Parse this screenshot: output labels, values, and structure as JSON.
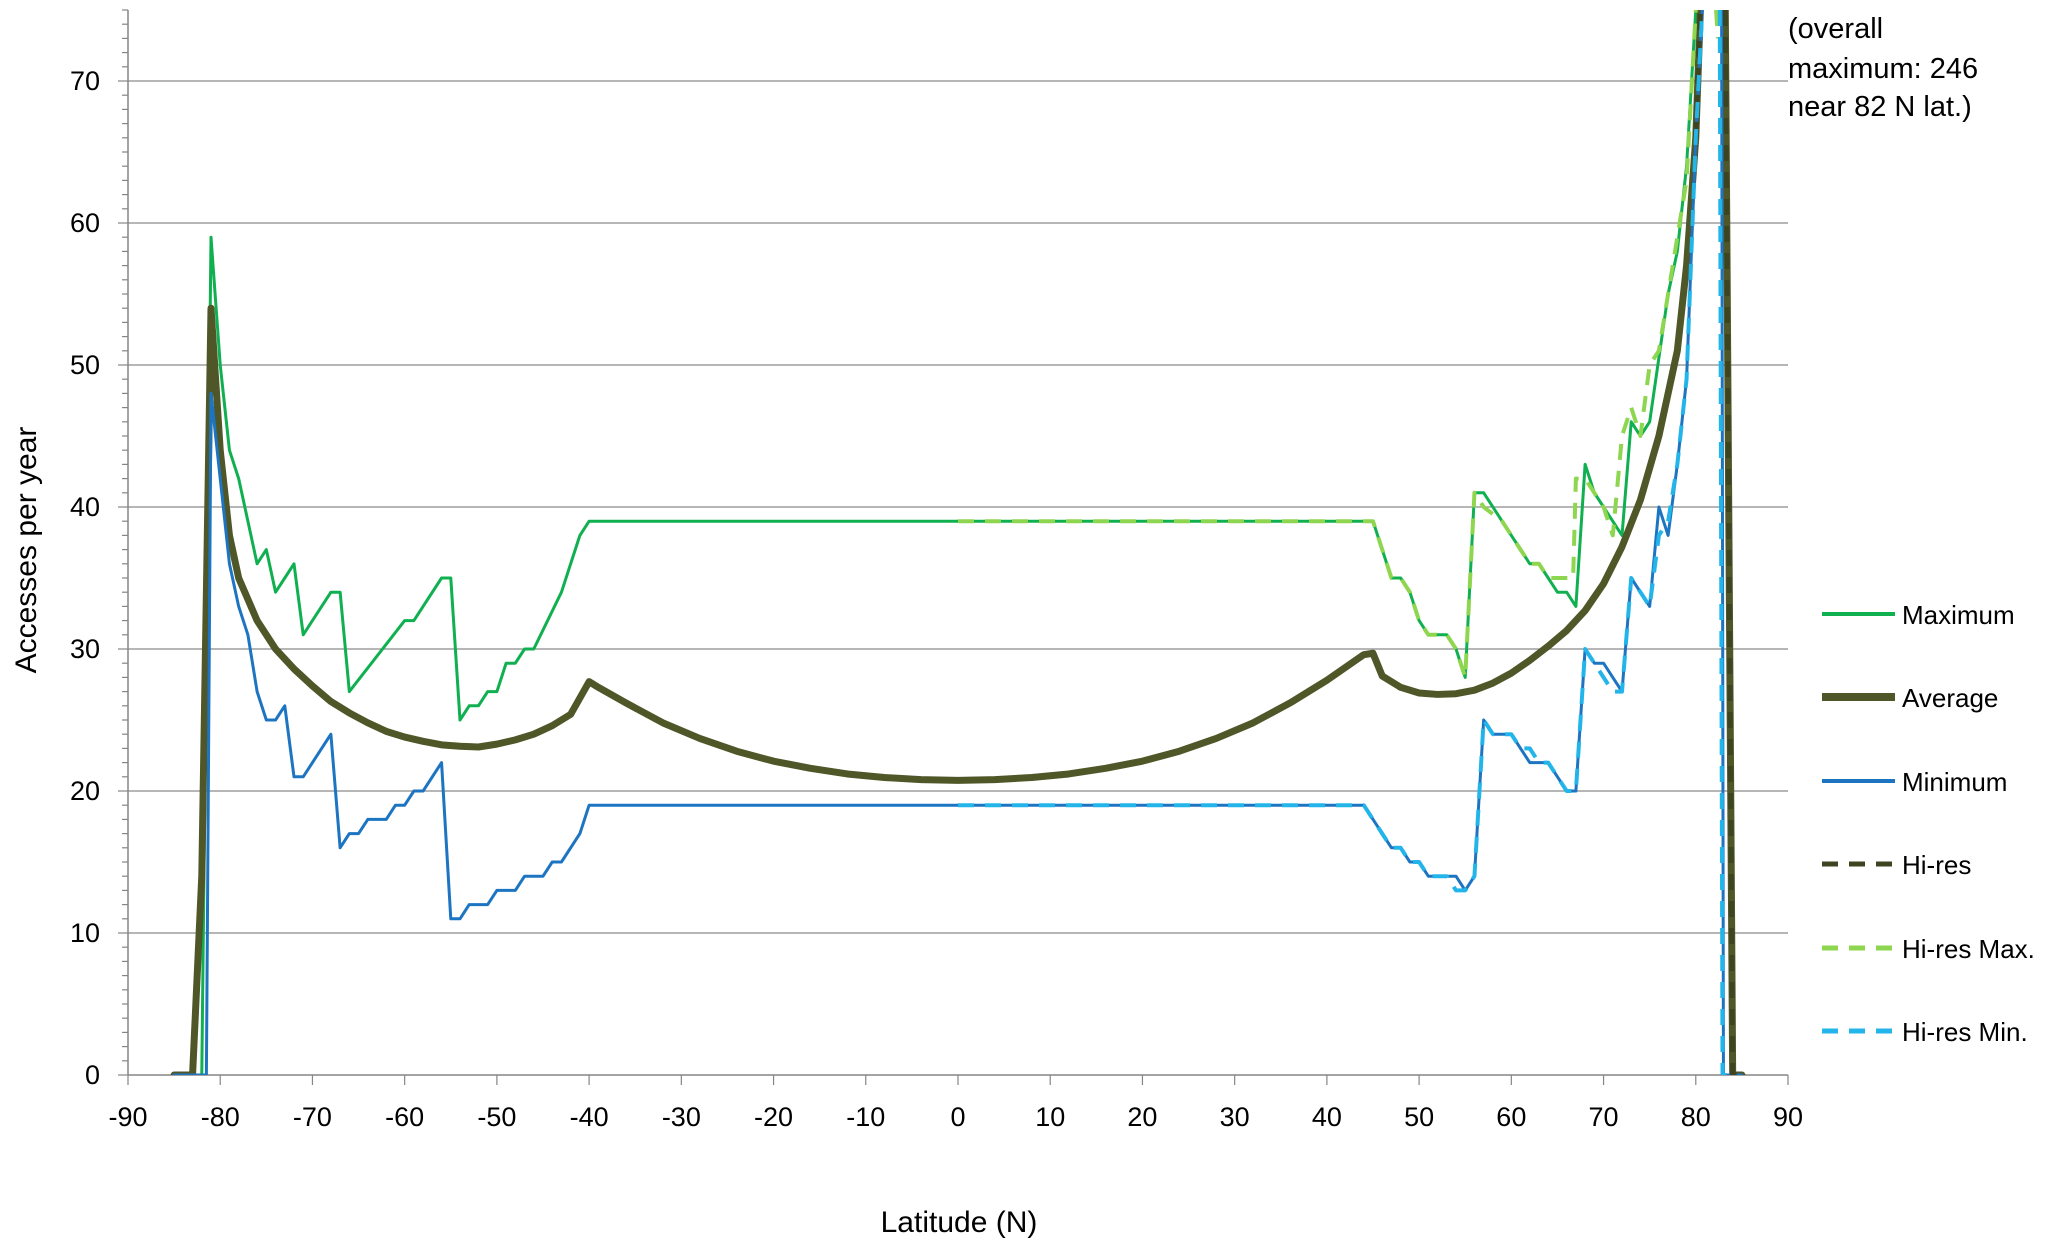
{
  "chart_data": {
    "type": "line",
    "xlabel": "Latitude (N)",
    "ylabel": "Accesses per year",
    "xlim": [
      -90,
      90
    ],
    "ylim": [
      0,
      75
    ],
    "x_ticks": [
      -90,
      -80,
      -70,
      -60,
      -50,
      -40,
      -30,
      -20,
      -10,
      0,
      10,
      20,
      30,
      40,
      50,
      60,
      70,
      80,
      90
    ],
    "y_ticks": [
      0,
      10,
      20,
      30,
      40,
      50,
      60,
      70
    ],
    "grid": "horizontal",
    "legend_position": "right",
    "annotation": [
      "(overall",
      "maximum:  246",
      "near  82 N lat.)"
    ],
    "series": [
      {
        "name": "Maximum",
        "color": "#10b050",
        "width": 3,
        "dashed": false,
        "points": [
          [
            -85,
            0
          ],
          [
            -82,
            0
          ],
          [
            -81,
            59
          ],
          [
            -80,
            50
          ],
          [
            -79,
            44
          ],
          [
            -78,
            42
          ],
          [
            -77,
            39
          ],
          [
            -76,
            36
          ],
          [
            -75,
            37
          ],
          [
            -74,
            34
          ],
          [
            -73,
            35
          ],
          [
            -72,
            36
          ],
          [
            -71,
            31
          ],
          [
            -70,
            32
          ],
          [
            -68,
            34
          ],
          [
            -67,
            34
          ],
          [
            -66,
            27
          ],
          [
            -60,
            32
          ],
          [
            -59,
            32
          ],
          [
            -56,
            35
          ],
          [
            -55,
            35
          ],
          [
            -54,
            25
          ],
          [
            -53,
            26
          ],
          [
            -52,
            26
          ],
          [
            -51,
            27
          ],
          [
            -50,
            27
          ],
          [
            -49,
            29
          ],
          [
            -48,
            29
          ],
          [
            -47,
            30
          ],
          [
            -46,
            30
          ],
          [
            -43,
            34
          ],
          [
            -41,
            38
          ],
          [
            -40,
            39
          ],
          [
            0,
            39
          ]
        ]
      },
      {
        "name": "Maximum",
        "color": "#10b050",
        "width": 3,
        "dashed": false,
        "points": [
          [
            0,
            39
          ],
          [
            44,
            39
          ],
          [
            45,
            39
          ],
          [
            46,
            37
          ],
          [
            47,
            35
          ],
          [
            48,
            35
          ],
          [
            49,
            34
          ],
          [
            50,
            32
          ],
          [
            51,
            31
          ],
          [
            53,
            31
          ],
          [
            54,
            30
          ],
          [
            55,
            28
          ],
          [
            56,
            41
          ],
          [
            57,
            41
          ],
          [
            59,
            39
          ],
          [
            60,
            38
          ],
          [
            61,
            37
          ],
          [
            62,
            36
          ],
          [
            63,
            36
          ],
          [
            64,
            35
          ],
          [
            65,
            34
          ],
          [
            66,
            34
          ],
          [
            67,
            33
          ],
          [
            68,
            43
          ],
          [
            69,
            41
          ],
          [
            70,
            40
          ],
          [
            72,
            38
          ],
          [
            73,
            46
          ],
          [
            74,
            45
          ],
          [
            75,
            46
          ],
          [
            77,
            55
          ],
          [
            78,
            58
          ],
          [
            79,
            64
          ],
          [
            80,
            75
          ]
        ]
      },
      {
        "name": "Average",
        "color": "#4f5628",
        "width": 7,
        "dashed": false,
        "points": [
          [
            -85,
            0
          ],
          [
            -83,
            0
          ],
          [
            -82,
            14
          ],
          [
            -81,
            54
          ],
          [
            -80,
            44
          ],
          [
            -79,
            38
          ],
          [
            -78,
            35
          ],
          [
            -76,
            32
          ],
          [
            -74,
            30
          ],
          [
            -72,
            28.6
          ],
          [
            -70,
            27.4
          ],
          [
            -68,
            26.3
          ],
          [
            -66,
            25.5
          ],
          [
            -64,
            24.8
          ],
          [
            -62,
            24.2
          ],
          [
            -60,
            23.8
          ],
          [
            -58,
            23.5
          ],
          [
            -56,
            23.25
          ],
          [
            -54,
            23.15
          ],
          [
            -52,
            23.1
          ],
          [
            -50,
            23.3
          ],
          [
            -48,
            23.6
          ],
          [
            -46,
            24
          ],
          [
            -44,
            24.6
          ],
          [
            -42,
            25.4
          ],
          [
            -40,
            27.7
          ],
          [
            -39,
            27.3
          ],
          [
            -36,
            26.2
          ],
          [
            -32,
            24.8
          ],
          [
            -28,
            23.7
          ],
          [
            -24,
            22.8
          ],
          [
            -20,
            22.1
          ],
          [
            -16,
            21.6
          ],
          [
            -12,
            21.2
          ],
          [
            -8,
            20.95
          ],
          [
            -4,
            20.8
          ],
          [
            0,
            20.75
          ],
          [
            4,
            20.8
          ],
          [
            8,
            20.95
          ],
          [
            12,
            21.2
          ],
          [
            16,
            21.6
          ],
          [
            20,
            22.1
          ],
          [
            24,
            22.8
          ],
          [
            28,
            23.7
          ],
          [
            32,
            24.8
          ],
          [
            36,
            26.2
          ],
          [
            40,
            27.8
          ],
          [
            44,
            29.6
          ],
          [
            45,
            29.7
          ],
          [
            46,
            28.1
          ],
          [
            48,
            27.3
          ],
          [
            50,
            26.9
          ],
          [
            52,
            26.8
          ],
          [
            54,
            26.85
          ],
          [
            56,
            27.1
          ],
          [
            58,
            27.6
          ],
          [
            60,
            28.3
          ],
          [
            62,
            29.2
          ],
          [
            64,
            30.2
          ],
          [
            66,
            31.3
          ],
          [
            68,
            32.7
          ],
          [
            70,
            34.6
          ],
          [
            72,
            37.2
          ],
          [
            74,
            40.5
          ],
          [
            76,
            45
          ],
          [
            78,
            51
          ],
          [
            79,
            57
          ],
          [
            80,
            66
          ],
          [
            80.5,
            75
          ]
        ]
      },
      {
        "name": "Average",
        "color": "#4f5628",
        "width": 7,
        "dashed": false,
        "points": [
          [
            83.2,
            75
          ],
          [
            84,
            0
          ],
          [
            85,
            0
          ]
        ]
      },
      {
        "name": "Minimum",
        "color": "#1d75c2",
        "width": 3,
        "dashed": false,
        "points": [
          [
            -85,
            0
          ],
          [
            -81.5,
            0
          ],
          [
            -81,
            48
          ],
          [
            -80,
            42
          ],
          [
            -79,
            36
          ],
          [
            -78,
            33
          ],
          [
            -77,
            31
          ],
          [
            -76,
            27
          ],
          [
            -75,
            25
          ],
          [
            -74,
            25
          ],
          [
            -73,
            26
          ],
          [
            -72,
            21
          ],
          [
            -71,
            21
          ],
          [
            -68,
            24
          ],
          [
            -67,
            16
          ],
          [
            -66,
            17
          ],
          [
            -65,
            17
          ],
          [
            -64,
            18
          ],
          [
            -62,
            18
          ],
          [
            -61,
            19
          ],
          [
            -60,
            19
          ],
          [
            -59,
            20
          ],
          [
            -58,
            20
          ],
          [
            -56,
            22
          ],
          [
            -55,
            11
          ],
          [
            -54,
            11
          ],
          [
            -53,
            12
          ],
          [
            -51,
            12
          ],
          [
            -50,
            13
          ],
          [
            -48,
            13
          ],
          [
            -47,
            14
          ],
          [
            -45,
            14
          ],
          [
            -44,
            15
          ],
          [
            -43,
            15
          ],
          [
            -41,
            17
          ],
          [
            -40,
            19
          ],
          [
            0,
            19
          ]
        ]
      },
      {
        "name": "Minimum",
        "color": "#1d75c2",
        "width": 3,
        "dashed": false,
        "points": [
          [
            0,
            19
          ],
          [
            44,
            19
          ],
          [
            46,
            17
          ],
          [
            47,
            16
          ],
          [
            48,
            16
          ],
          [
            49,
            15
          ],
          [
            50,
            15
          ],
          [
            51,
            14
          ],
          [
            53,
            14
          ],
          [
            54,
            14
          ],
          [
            55,
            13
          ],
          [
            56,
            14
          ],
          [
            57,
            25
          ],
          [
            58,
            24
          ],
          [
            60,
            24
          ],
          [
            61,
            23
          ],
          [
            62,
            22
          ],
          [
            64,
            22
          ],
          [
            65,
            21
          ],
          [
            66,
            20
          ],
          [
            67,
            20
          ],
          [
            68,
            30
          ],
          [
            69,
            29
          ],
          [
            70,
            29
          ],
          [
            71,
            28
          ],
          [
            72,
            27
          ],
          [
            73,
            35
          ],
          [
            74,
            34
          ],
          [
            75,
            33
          ],
          [
            76,
            40
          ],
          [
            77,
            38
          ],
          [
            78,
            43
          ],
          [
            79,
            49
          ],
          [
            80,
            66
          ],
          [
            80.7,
            75
          ]
        ]
      },
      {
        "name": "Minimum",
        "color": "#1d75c2",
        "width": 3,
        "dashed": false,
        "points": [
          [
            82.8,
            75
          ],
          [
            83,
            0
          ],
          [
            85,
            0
          ]
        ]
      },
      {
        "name": "Hi-res",
        "color": "#3d4420",
        "width": 5,
        "dashed": true,
        "points": [
          [
            80,
            66
          ],
          [
            80.5,
            75
          ]
        ]
      },
      {
        "name": "Hi-res",
        "color": "#3d4420",
        "width": 5,
        "dashed": true,
        "points": [
          [
            83.2,
            75
          ],
          [
            84,
            0
          ],
          [
            85,
            0
          ]
        ]
      },
      {
        "name": "Hi-res Max.",
        "color": "#8ed650",
        "width": 4,
        "dashed": true,
        "points": [
          [
            0,
            39
          ],
          [
            44,
            39
          ],
          [
            45,
            39
          ],
          [
            46,
            37
          ],
          [
            47,
            35
          ],
          [
            48,
            35
          ],
          [
            49,
            34
          ],
          [
            50,
            32
          ],
          [
            51,
            31
          ],
          [
            53,
            31
          ],
          [
            54,
            30
          ],
          [
            55,
            28
          ],
          [
            56,
            41
          ],
          [
            57,
            40
          ],
          [
            59,
            39
          ],
          [
            60,
            38
          ],
          [
            61,
            37
          ],
          [
            62,
            36
          ],
          [
            63,
            36
          ],
          [
            64,
            35
          ],
          [
            66,
            35
          ],
          [
            66.7,
            35
          ],
          [
            67,
            42
          ],
          [
            68,
            42
          ],
          [
            69,
            41
          ],
          [
            70,
            40
          ],
          [
            71,
            38
          ],
          [
            72,
            45
          ],
          [
            73,
            47
          ],
          [
            74,
            45
          ],
          [
            75,
            50
          ],
          [
            76,
            51
          ],
          [
            77,
            55
          ],
          [
            78,
            59
          ],
          [
            79,
            63
          ],
          [
            80,
            75
          ]
        ]
      },
      {
        "name": "Hi-res Max.",
        "color": "#8ed650",
        "width": 4,
        "dashed": true,
        "points": [
          [
            82.2,
            75
          ],
          [
            82.4,
            73
          ]
        ]
      },
      {
        "name": "Hi-res Min.",
        "color": "#23b5ea",
        "width": 4,
        "dashed": true,
        "points": [
          [
            0,
            19
          ],
          [
            44,
            19
          ],
          [
            46,
            17
          ],
          [
            47,
            16
          ],
          [
            48,
            16
          ],
          [
            49,
            15
          ],
          [
            50,
            15
          ],
          [
            51,
            14
          ],
          [
            53,
            14
          ],
          [
            54,
            13
          ],
          [
            55,
            13
          ],
          [
            56,
            14
          ],
          [
            57,
            25
          ],
          [
            58,
            24
          ],
          [
            60,
            24
          ],
          [
            61,
            23
          ],
          [
            62,
            23
          ],
          [
            63,
            22
          ],
          [
            64,
            22
          ],
          [
            65,
            21
          ],
          [
            66,
            20
          ],
          [
            67,
            20
          ],
          [
            68,
            30
          ],
          [
            69,
            29
          ],
          [
            70,
            28
          ],
          [
            71,
            27
          ],
          [
            72,
            27
          ],
          [
            73,
            35
          ],
          [
            74,
            34
          ],
          [
            75,
            33
          ],
          [
            76,
            38
          ],
          [
            77,
            39
          ],
          [
            78,
            43
          ],
          [
            79,
            49
          ],
          [
            80,
            66
          ],
          [
            80.7,
            75
          ]
        ]
      },
      {
        "name": "Hi-res Min.",
        "color": "#23b5ea",
        "width": 4,
        "dashed": true,
        "points": [
          [
            82.6,
            75
          ],
          [
            82.9,
            0
          ],
          [
            84,
            0
          ]
        ]
      }
    ]
  }
}
